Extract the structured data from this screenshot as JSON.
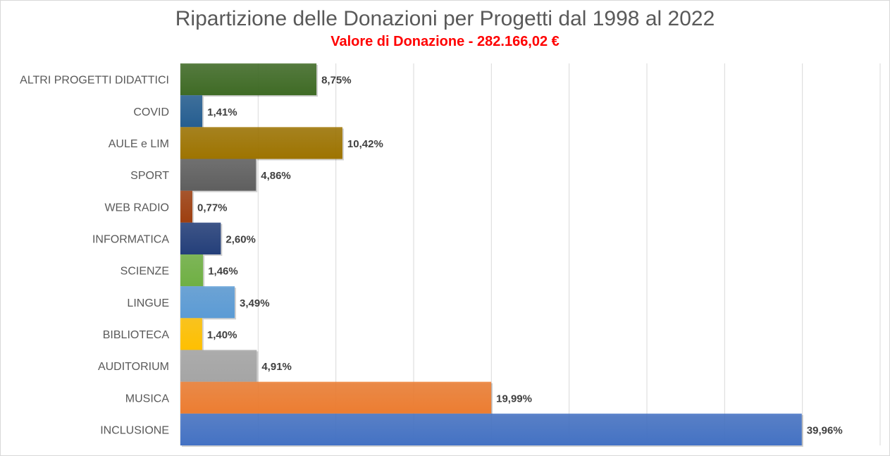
{
  "chart_data": {
    "type": "bar",
    "orientation": "horizontal",
    "title": "Ripartizione delle Donazioni per Progetti dal 1998 al 2022",
    "subtitle": "Valore di Donazione - 282.166,02 €",
    "xlim": [
      0,
      45
    ],
    "grid": true,
    "categories": [
      "ALTRI PROGETTI DIDATTICI",
      "COVID",
      "AULE e LIM",
      "SPORT",
      "WEB RADIO",
      "INFORMATICA",
      "SCIENZE",
      "LINGUE",
      "BIBLIOTECA",
      "AUDITORIUM",
      "MUSICA",
      "INCLUSIONE"
    ],
    "values": [
      8.75,
      1.41,
      10.42,
      4.86,
      0.77,
      2.6,
      1.46,
      3.49,
      1.4,
      4.91,
      19.99,
      39.96
    ],
    "value_labels": [
      "8,75%",
      "1,41%",
      "10,42%",
      "4,86%",
      "0,77%",
      "2,60%",
      "1,46%",
      "3,49%",
      "1,40%",
      "4,91%",
      "19,99%",
      "39,96%"
    ],
    "colors": [
      "#3f6b25",
      "#255e91",
      "#9e7400",
      "#5f5f5f",
      "#9e3f10",
      "#243f7a",
      "#6fb043",
      "#5b9bd5",
      "#ffc000",
      "#a5a5a5",
      "#ed7d31",
      "#4472c4"
    ]
  }
}
